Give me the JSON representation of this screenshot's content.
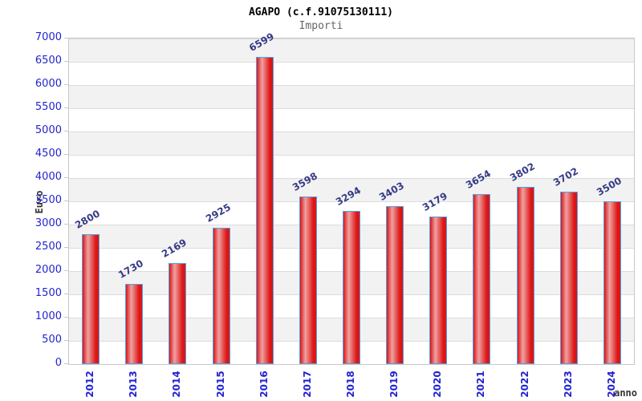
{
  "chart_data": {
    "type": "bar",
    "title": "AGAPO (c.f.91075130111)",
    "subtitle": "Importi",
    "xlabel": "anno",
    "ylabel": "Euro",
    "categories": [
      "2012",
      "2013",
      "2014",
      "2015",
      "2016",
      "2017",
      "2018",
      "2019",
      "2020",
      "2021",
      "2022",
      "2023",
      "2024"
    ],
    "values": [
      2800,
      1730,
      2169,
      2925,
      6599,
      3598,
      3294,
      3403,
      3179,
      3654,
      3802,
      3702,
      3500
    ],
    "ylim": [
      0,
      7000
    ],
    "y_ticks": [
      0,
      500,
      1000,
      1500,
      2000,
      2500,
      3000,
      3500,
      4000,
      4500,
      5000,
      5500,
      6000,
      6500,
      7000
    ],
    "grid": "horizontal gridlines with alternating gray/white bands every 500",
    "legend": "none",
    "value_labels": "above each bar, rotated -30deg",
    "x_labels_rotation": "vertical (-90deg)",
    "colors": {
      "bar_fill_dark": "#dd1515",
      "bar_fill_light": "#efa2a2",
      "bar_border": "#4da3e8",
      "value_label": "#363b85",
      "tick_label": "#2323d0",
      "band_gray": "#f2f2f2",
      "grid_line": "#dcdcdc",
      "plot_border": "#c8c8c8",
      "title": "#000000",
      "subtitle": "#666666",
      "axis_title": "#333333",
      "background": "#ffffff"
    }
  }
}
